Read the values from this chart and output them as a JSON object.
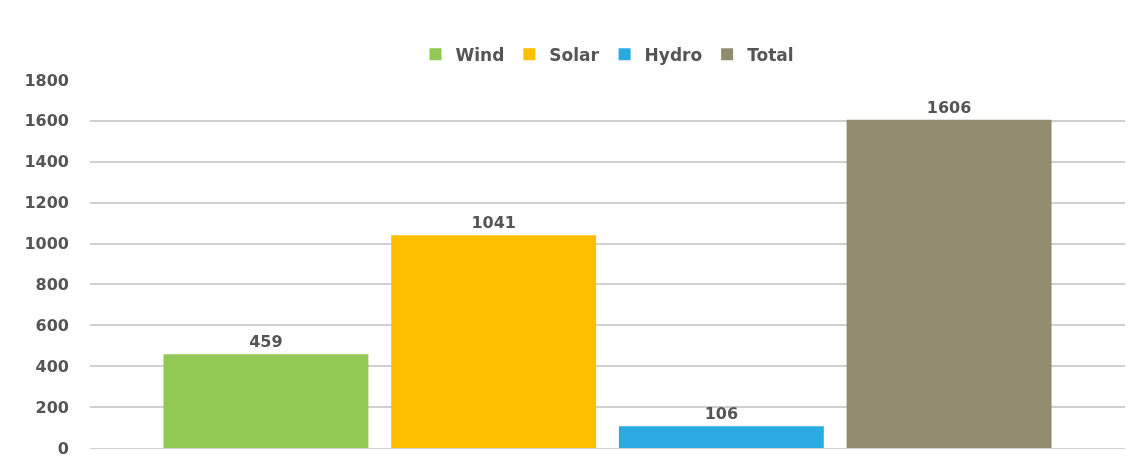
{
  "chart_data": {
    "type": "bar",
    "categories": [
      null
    ],
    "series": [
      {
        "name": "Wind",
        "color": "#92c955",
        "values": [
          459
        ]
      },
      {
        "name": "Solar",
        "color": "#fdbf00",
        "values": [
          1041
        ]
      },
      {
        "name": "Hydro",
        "color": "#29abe2",
        "values": [
          106
        ]
      },
      {
        "name": "Total",
        "color": "#918b6f",
        "values": [
          1606
        ]
      }
    ],
    "ylim": [
      0,
      1800
    ],
    "yticks": [
      0,
      200,
      400,
      600,
      800,
      1000,
      1200,
      1400,
      1600,
      1800
    ],
    "grid": "y",
    "legend": "top",
    "data_labels": true,
    "tick_labels": "y"
  }
}
